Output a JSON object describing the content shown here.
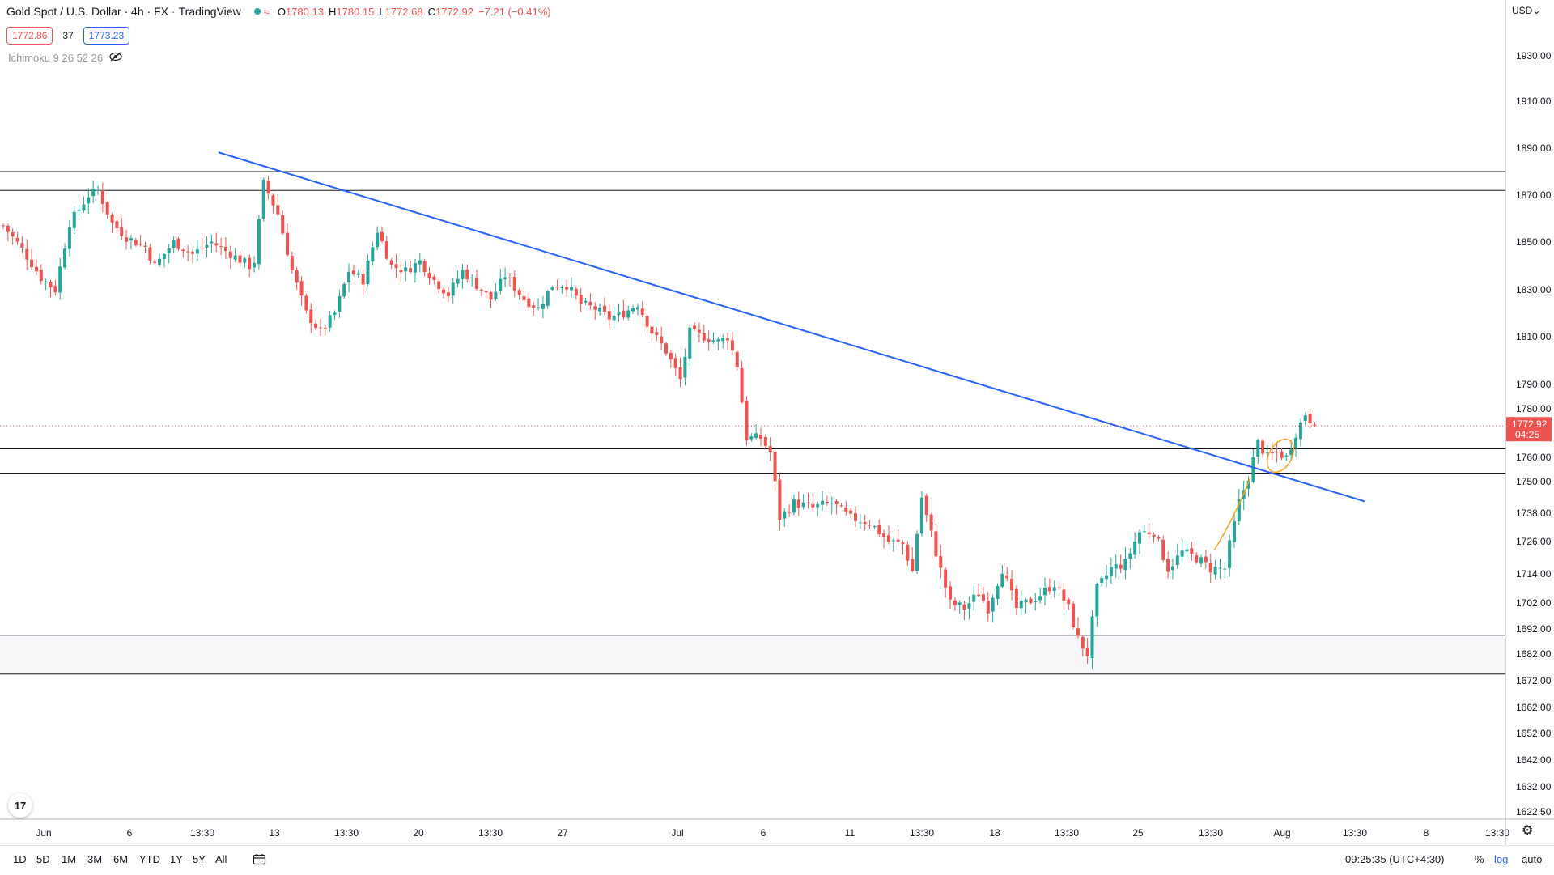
{
  "legend": {
    "title": "Gold Spot / U.S. Dollar · 4h · FX",
    "source": "TradingView",
    "open_label": "O",
    "open": "1780.13",
    "high_label": "H",
    "high": "1780.15",
    "low_label": "L",
    "low": "1772.68",
    "close_label": "C",
    "close": "1772.92",
    "change": "−7.21 (−0.41%)",
    "bid": "1772.86",
    "spread": "37",
    "ask": "1773.23",
    "indicator": "Ichimoku 9 26 52 26"
  },
  "currency": "USD",
  "last_price": {
    "label": "1772.92",
    "countdown": "04:25"
  },
  "toolbar": {
    "ranges": [
      "1D",
      "5D",
      "1M",
      "3M",
      "6M",
      "YTD",
      "1Y",
      "5Y",
      "All"
    ],
    "time": "09:25:35 (UTC+4:30)",
    "percent": "%",
    "log": "log",
    "auto": "auto"
  },
  "colors": {
    "up": "#26a69a",
    "down": "#ef5350",
    "trendline": "#2962ff",
    "level": "#131722",
    "accent_orange": "#f7a21b",
    "last_price": "#ef5350"
  },
  "chart_data": {
    "type": "candlestick",
    "symbol": "XAUUSD",
    "interval": "4h",
    "y_range": [
      1616,
      1950
    ],
    "y_ticks": [
      1930,
      1910,
      1890,
      1870,
      1850,
      1830,
      1810,
      1790,
      1780,
      1760,
      1750,
      1738,
      1726,
      1714,
      1702,
      1692,
      1682,
      1672,
      1662,
      1652,
      1642,
      1632,
      1622.5
    ],
    "y_tick_labels": [
      "1930.00",
      "1910.00",
      "1890.00",
      "1870.00",
      "1850.00",
      "1830.00",
      "1810.00",
      "1790.00",
      "1780.00",
      "1760.00",
      "1750.00",
      "1738.00",
      "1726.00",
      "1714.00",
      "1702.00",
      "1692.00",
      "1682.00",
      "1672.00",
      "1662.00",
      "1652.00",
      "1642.00",
      "1632.00",
      "1622.50"
    ],
    "x_tick_labels": [
      "Jun",
      "6",
      "13:30",
      "13",
      "13:30",
      "20",
      "13:30",
      "27",
      "Jul",
      "6",
      "11",
      "13:30",
      "18",
      "13:30",
      "25",
      "13:30",
      "Aug",
      "13:30",
      "8",
      "13:30"
    ],
    "horizontal_levels": [
      1880.0,
      1872.0,
      1763.5,
      1753.5,
      1689.5,
      1674.5
    ],
    "trendline": [
      [
        0,
        1887.5
      ],
      [
        285,
        1742.5
      ]
    ],
    "anchors": [
      [
        0,
        1857
      ],
      [
        4,
        1847
      ],
      [
        8,
        1835
      ],
      [
        11,
        1830
      ],
      [
        14,
        1858
      ],
      [
        18,
        1870
      ],
      [
        20,
        1872
      ],
      [
        23,
        1858
      ],
      [
        26,
        1852
      ],
      [
        30,
        1848
      ],
      [
        32,
        1840
      ],
      [
        36,
        1850
      ],
      [
        40,
        1845
      ],
      [
        44,
        1850
      ],
      [
        48,
        1845
      ],
      [
        52,
        1840
      ],
      [
        53,
        1842
      ],
      [
        55,
        1875
      ],
      [
        58,
        1862
      ],
      [
        61,
        1838
      ],
      [
        64,
        1820
      ],
      [
        67,
        1812
      ],
      [
        70,
        1820
      ],
      [
        73,
        1838
      ],
      [
        76,
        1834
      ],
      [
        79,
        1855
      ],
      [
        82,
        1840
      ],
      [
        85,
        1838
      ],
      [
        88,
        1842
      ],
      [
        91,
        1834
      ],
      [
        94,
        1828
      ],
      [
        97,
        1838
      ],
      [
        100,
        1832
      ],
      [
        103,
        1826
      ],
      [
        106,
        1836
      ],
      [
        110,
        1826
      ],
      [
        113,
        1822
      ],
      [
        116,
        1832
      ],
      [
        119,
        1832
      ],
      [
        122,
        1824
      ],
      [
        125,
        1822
      ],
      [
        128,
        1818
      ],
      [
        131,
        1820
      ],
      [
        134,
        1824
      ],
      [
        137,
        1812
      ],
      [
        140,
        1804
      ],
      [
        143,
        1792
      ],
      [
        145,
        1812
      ],
      [
        148,
        1810
      ],
      [
        151,
        1808
      ],
      [
        153,
        1810
      ],
      [
        155,
        1798
      ],
      [
        157,
        1768
      ],
      [
        160,
        1768
      ],
      [
        162,
        1762
      ],
      [
        164,
        1736
      ],
      [
        167,
        1742
      ],
      [
        171,
        1740
      ],
      [
        175,
        1742
      ],
      [
        179,
        1736
      ],
      [
        183,
        1734
      ],
      [
        187,
        1726
      ],
      [
        190,
        1725
      ],
      [
        192,
        1715
      ],
      [
        194,
        1744
      ],
      [
        197,
        1722
      ],
      [
        200,
        1702
      ],
      [
        203,
        1700
      ],
      [
        206,
        1706
      ],
      [
        208,
        1700
      ],
      [
        211,
        1716
      ],
      [
        214,
        1700
      ],
      [
        218,
        1704
      ],
      [
        222,
        1710
      ],
      [
        225,
        1700
      ],
      [
        227,
        1688
      ],
      [
        229,
        1682
      ],
      [
        231,
        1708
      ],
      [
        234,
        1716
      ],
      [
        237,
        1718
      ],
      [
        240,
        1730
      ],
      [
        243,
        1730
      ],
      [
        246,
        1716
      ],
      [
        249,
        1722
      ],
      [
        252,
        1720
      ],
      [
        255,
        1716
      ],
      [
        258,
        1716
      ],
      [
        261,
        1742
      ],
      [
        263,
        1752
      ],
      [
        265,
        1766
      ],
      [
        267,
        1760
      ],
      [
        269,
        1762
      ],
      [
        271,
        1760
      ],
      [
        273,
        1770
      ],
      [
        275,
        1778
      ],
      [
        277,
        1772.92
      ]
    ]
  }
}
